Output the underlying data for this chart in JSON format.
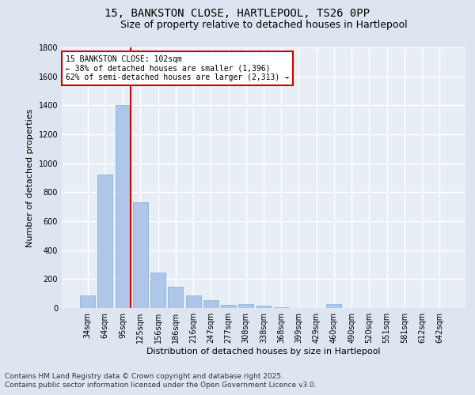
{
  "title_line1": "15, BANKSTON CLOSE, HARTLEPOOL, TS26 0PP",
  "title_line2": "Size of property relative to detached houses in Hartlepool",
  "xlabel": "Distribution of detached houses by size in Hartlepool",
  "ylabel": "Number of detached properties",
  "categories": [
    "34sqm",
    "64sqm",
    "95sqm",
    "125sqm",
    "156sqm",
    "186sqm",
    "216sqm",
    "247sqm",
    "277sqm",
    "308sqm",
    "338sqm",
    "368sqm",
    "399sqm",
    "429sqm",
    "460sqm",
    "490sqm",
    "520sqm",
    "551sqm",
    "581sqm",
    "612sqm",
    "642sqm"
  ],
  "values": [
    85,
    920,
    1400,
    730,
    248,
    148,
    88,
    52,
    22,
    30,
    14,
    5,
    0,
    0,
    25,
    0,
    0,
    0,
    0,
    0,
    0
  ],
  "bar_color": "#aec6e8",
  "bar_edge_color": "#7aafd4",
  "vline_color": "#cc0000",
  "annotation_text": "15 BANKSTON CLOSE: 102sqm\n← 38% of detached houses are smaller (1,396)\n62% of semi-detached houses are larger (2,313) →",
  "annotation_box_color": "#cc0000",
  "annotation_box_fill": "#ffffff",
  "ylim": [
    0,
    1800
  ],
  "yticks": [
    0,
    200,
    400,
    600,
    800,
    1000,
    1200,
    1400,
    1600,
    1800
  ],
  "footer_line1": "Contains HM Land Registry data © Crown copyright and database right 2025.",
  "footer_line2": "Contains public sector information licensed under the Open Government Licence v3.0.",
  "background_color": "#dde6f0",
  "plot_background_color": "#e8eef5",
  "grid_color": "#ffffff",
  "title_fontsize": 10,
  "subtitle_fontsize": 9,
  "axis_label_fontsize": 8,
  "tick_fontsize": 7,
  "footer_fontsize": 6.5
}
